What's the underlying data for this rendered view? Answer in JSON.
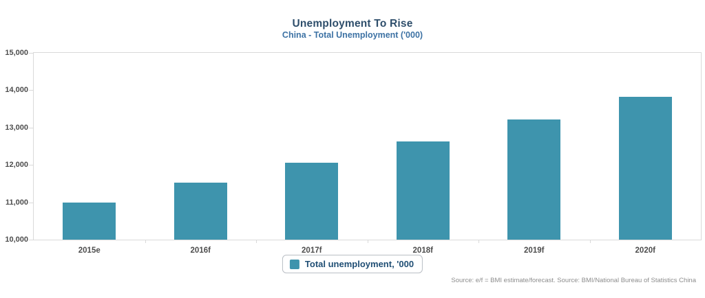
{
  "title": "Unemployment To Rise",
  "subtitle": "China - Total Unemployment ('000)",
  "legend": {
    "label": "Total unemployment, '000"
  },
  "source": "Source: e/f = BMI estimate/forecast. Source: BMI/National Bureau of Statistics China",
  "colors": {
    "bar": "#3E94AD",
    "title": "#2E4E6B",
    "subtitle": "#3D72A4",
    "axis_text": "#4D4D4D",
    "axis_line": "#D9D9D9",
    "legend_text": "#1F4E74",
    "source_text": "#8C8C8C"
  },
  "chart_data": {
    "type": "bar",
    "title": "Unemployment To Rise",
    "subtitle": "China - Total Unemployment ('000)",
    "categories": [
      "2015e",
      "2016f",
      "2017f",
      "2018f",
      "2019f",
      "2020f"
    ],
    "values": [
      11000,
      11520,
      12060,
      12620,
      13210,
      13820
    ],
    "series_name": "Total unemployment, '000",
    "xlabel": "",
    "ylabel": "",
    "ylim": [
      10000,
      15000
    ],
    "ytick_step": 1000,
    "grid": false,
    "legend_position": "bottom-center",
    "bar_color": "#3E94AD"
  }
}
